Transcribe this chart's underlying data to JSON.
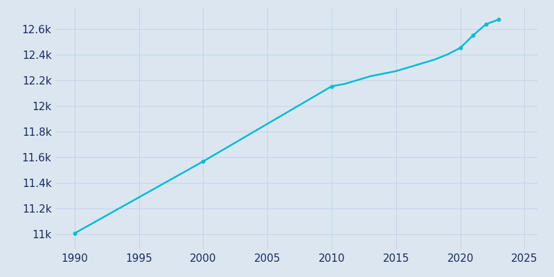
{
  "years": [
    1990,
    2000,
    2010,
    2011,
    2012,
    2013,
    2014,
    2015,
    2016,
    2017,
    2018,
    2019,
    2020,
    2021,
    2022,
    2023
  ],
  "population": [
    11005,
    11566,
    12152,
    12170,
    12200,
    12230,
    12250,
    12270,
    12300,
    12330,
    12360,
    12400,
    12451,
    12549,
    12636,
    12673
  ],
  "line_color": "#00bcd4",
  "marker_years": [
    1990,
    2000,
    2010,
    2020,
    2021,
    2022,
    2023
  ],
  "marker_populations": [
    11005,
    11566,
    12152,
    12451,
    12549,
    12636,
    12673
  ],
  "bg_color": "#dce6f0",
  "grid_color": "#c5d5e8",
  "text_color": "#1a2a5e",
  "xlim": [
    1988.5,
    2026
  ],
  "ylim": [
    10880,
    12760
  ],
  "yticks": [
    11000,
    11200,
    11400,
    11600,
    11800,
    12000,
    12200,
    12400,
    12600
  ],
  "xticks": [
    1990,
    1995,
    2000,
    2005,
    2010,
    2015,
    2020,
    2025
  ],
  "figsize": [
    8.0,
    4.0
  ],
  "dpi": 100
}
